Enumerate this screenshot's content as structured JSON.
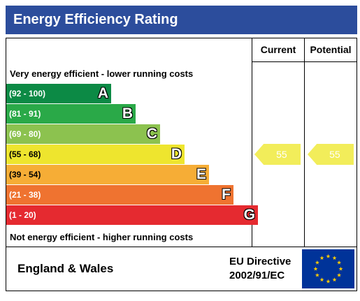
{
  "title": "Energy Efficiency Rating",
  "columns": {
    "current": "Current",
    "potential": "Potential"
  },
  "captions": {
    "top": "Very energy efficient - lower running costs",
    "bottom": "Not energy efficient - higher running costs"
  },
  "chart_data": {
    "type": "bar",
    "categories": [
      "A",
      "B",
      "C",
      "D",
      "E",
      "F",
      "G"
    ],
    "ranges": [
      "(92 - 100)",
      "(81 - 91)",
      "(69 - 80)",
      "(55 - 68)",
      "(39 - 54)",
      "(21 - 38)",
      "(1 - 20)"
    ],
    "colors": [
      "#0c8a45",
      "#2aa948",
      "#8cc24f",
      "#eee52e",
      "#f6ad36",
      "#ef7330",
      "#e52a30"
    ],
    "current": {
      "value": 55,
      "band": "D",
      "color": "#f2ed5a"
    },
    "potential": {
      "value": 55,
      "band": "D",
      "color": "#f2ed5a"
    }
  },
  "footer": {
    "region": "England & Wales",
    "directive_line1": "EU Directive",
    "directive_line2": "2002/91/EC"
  }
}
